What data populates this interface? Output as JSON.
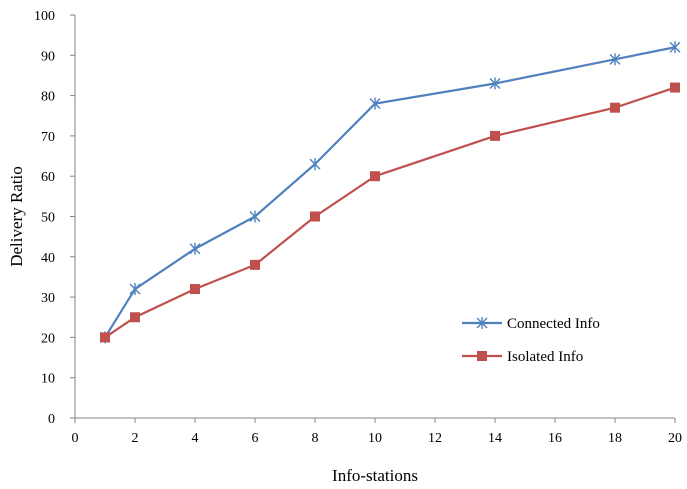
{
  "chart_data": {
    "type": "line",
    "xlabel": "Info-stations",
    "ylabel": "Delivery Ratio",
    "xlim": [
      0,
      20
    ],
    "ylim": [
      0,
      100
    ],
    "xticks": [
      0,
      2,
      4,
      6,
      8,
      10,
      12,
      14,
      16,
      18,
      20
    ],
    "yticks": [
      0,
      10,
      20,
      30,
      40,
      50,
      60,
      70,
      80,
      90,
      100
    ],
    "grid": false,
    "legend_position": "lower-right",
    "series": [
      {
        "name": "Connected Info",
        "color": "#4f81bd",
        "marker": "star",
        "x": [
          1,
          2,
          4,
          6,
          8,
          10,
          14,
          18,
          20
        ],
        "y": [
          20,
          32,
          42,
          50,
          63,
          78,
          83,
          89,
          92
        ]
      },
      {
        "name": "Isolated Info",
        "color": "#c0504d",
        "marker": "square",
        "x": [
          1,
          2,
          4,
          6,
          8,
          10,
          14,
          18,
          20
        ],
        "y": [
          20,
          25,
          32,
          38,
          50,
          60,
          70,
          77,
          82
        ]
      }
    ]
  }
}
